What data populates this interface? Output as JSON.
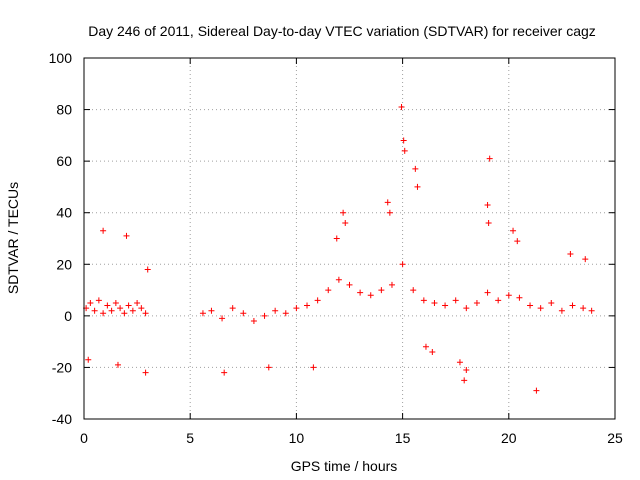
{
  "chart_data": {
    "type": "scatter",
    "title": "Day 246 of 2011, Sidereal Day-to-day VTEC variation (SDTVAR) for receiver cagz",
    "xlabel": "GPS time / hours",
    "ylabel": "SDTVAR / TECUs",
    "xlim": [
      0,
      25
    ],
    "ylim": [
      -40,
      100
    ],
    "xticks": [
      0,
      5,
      10,
      15,
      20,
      25
    ],
    "yticks": [
      -40,
      -20,
      0,
      20,
      40,
      60,
      80,
      100
    ],
    "grid": true,
    "marker": "+",
    "series_color": "#ff0000",
    "series": [
      {
        "name": "SDTVAR",
        "coverage_hours": [
          [
            0.0,
            3.0
          ],
          [
            5.5,
            24.0
          ]
        ],
        "x": [
          0.1,
          0.3,
          0.5,
          0.7,
          0.9,
          1.1,
          1.3,
          1.5,
          1.7,
          1.9,
          2.1,
          2.3,
          2.5,
          2.7,
          2.9,
          0.9,
          2.0,
          0.2,
          1.6,
          2.9,
          5.6,
          6.0,
          6.5,
          7.0,
          7.5,
          8.0,
          8.5,
          9.0,
          9.5,
          10.0,
          10.5,
          11.0,
          11.5,
          12.0,
          12.5,
          13.0,
          13.5,
          14.0,
          14.5,
          15.0,
          15.5,
          16.0,
          16.5,
          17.0,
          17.5,
          18.0,
          18.5,
          19.0,
          19.5,
          20.0,
          20.5,
          21.0,
          21.5,
          22.0,
          22.5,
          23.0,
          23.5,
          23.9,
          14.95,
          15.05,
          15.1,
          15.6,
          15.7,
          19.1,
          19.0,
          19.05,
          14.3,
          14.4,
          12.2,
          12.3,
          11.9,
          6.6,
          21.3,
          17.9,
          18.0,
          17.7,
          20.2,
          20.4,
          16.4,
          16.1,
          8.7,
          10.8,
          22.9,
          23.6,
          3.0
        ],
        "y": [
          3,
          5,
          2,
          6,
          1,
          4,
          2,
          5,
          3,
          1,
          4,
          2,
          5,
          3,
          1,
          33,
          31,
          -17,
          -19,
          -22,
          1,
          2,
          -1,
          3,
          1,
          -2,
          0,
          2,
          1,
          3,
          4,
          6,
          10,
          14,
          12,
          9,
          8,
          10,
          12,
          20,
          10,
          6,
          5,
          4,
          6,
          3,
          5,
          9,
          6,
          8,
          7,
          4,
          3,
          5,
          2,
          4,
          3,
          2,
          81,
          68,
          64,
          57,
          50,
          61,
          43,
          36,
          44,
          40,
          40,
          36,
          30,
          -22,
          -29,
          -25,
          -21,
          -18,
          33,
          29,
          -14,
          -12,
          -20,
          -20,
          24,
          22,
          18
        ]
      }
    ]
  }
}
